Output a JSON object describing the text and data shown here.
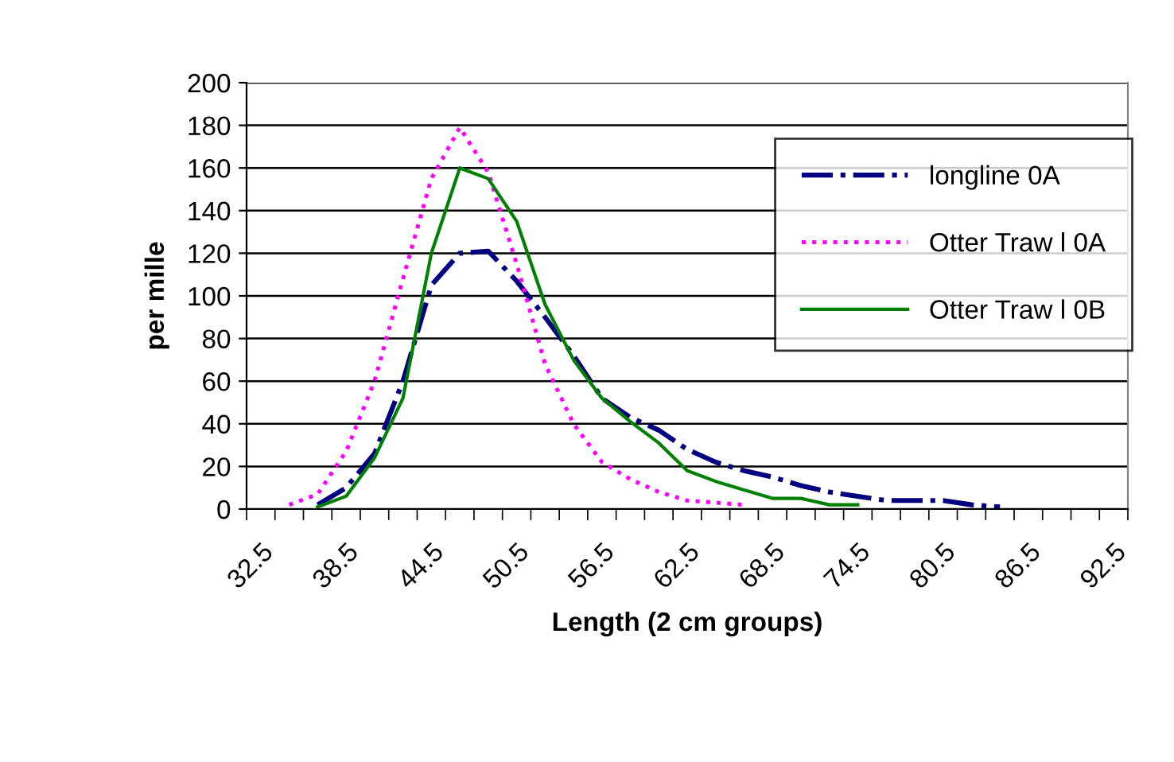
{
  "chart_data": {
    "type": "line",
    "xlabel": "Length (2 cm groups)",
    "ylabel": "per mille",
    "categories": [
      "32.5",
      null,
      null,
      "38.5",
      null,
      null,
      "44.5",
      null,
      null,
      "50.5",
      null,
      null,
      "56.5",
      null,
      null,
      "62.5",
      null,
      null,
      "68.5",
      null,
      null,
      "74.5",
      null,
      null,
      "80.5",
      null,
      null,
      "86.5",
      null,
      null,
      "92.5"
    ],
    "series": [
      {
        "name": "longline 0A",
        "color": "#000080",
        "line_style": "dashdot",
        "values": [
          null,
          null,
          2,
          10,
          26,
          60,
          105,
          120,
          121,
          107,
          90,
          72,
          52,
          43,
          37,
          28,
          22,
          18,
          15,
          11,
          8,
          6,
          4,
          4,
          4,
          2,
          1,
          null,
          null,
          null,
          null
        ]
      },
      {
        "name": "Otter Traw l 0A",
        "color": "#ff00ff",
        "line_style": "dotted",
        "values": [
          null,
          2,
          7,
          27,
          60,
          108,
          155,
          179,
          158,
          115,
          68,
          40,
          22,
          14,
          8,
          4,
          3,
          2,
          null,
          null,
          null,
          null,
          null,
          null,
          null,
          null,
          null,
          null,
          null,
          null,
          null
        ]
      },
      {
        "name": "Otter Traw l 0B",
        "color": "#008000",
        "line_style": "solid",
        "values": [
          null,
          null,
          1,
          6,
          24,
          52,
          120,
          160,
          155,
          135,
          96,
          70,
          52,
          41,
          31,
          18,
          13,
          9,
          5,
          5,
          2,
          2,
          null,
          null,
          null,
          null,
          null,
          null,
          null,
          null,
          null
        ]
      }
    ],
    "ylim": [
      0,
      200
    ],
    "yticks": [
      0,
      20,
      40,
      60,
      80,
      100,
      120,
      140,
      160,
      180,
      200
    ],
    "grid": "y",
    "legend": "top right",
    "marker": "none"
  }
}
